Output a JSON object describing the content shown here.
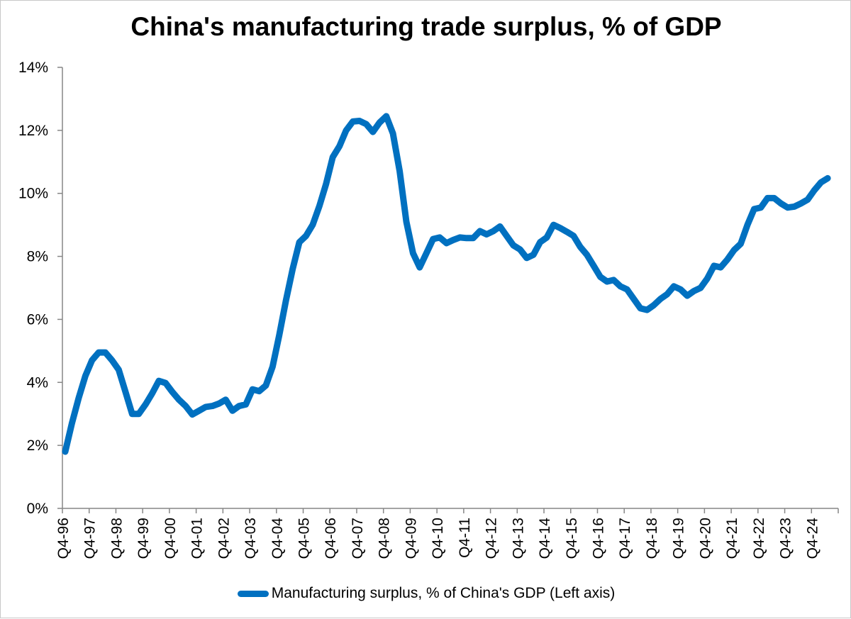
{
  "chart_data": {
    "type": "line",
    "title": "China's manufacturing trade surplus, % of GDP",
    "xlabel": "",
    "ylabel": "",
    "ylim": [
      0,
      14
    ],
    "y_ticks": [
      "0%",
      "2%",
      "4%",
      "6%",
      "8%",
      "10%",
      "12%",
      "14%"
    ],
    "y_tick_values": [
      0,
      2,
      4,
      6,
      8,
      10,
      12,
      14
    ],
    "x_tick_labels": [
      "Q4-96",
      "Q4-97",
      "Q4-98",
      "Q4-99",
      "Q4-00",
      "Q4-01",
      "Q4-02",
      "Q4-03",
      "Q4-04",
      "Q4-05",
      "Q4-06",
      "Q4-07",
      "Q4-08",
      "Q4-09",
      "Q4-10",
      "Q4-11",
      "Q4-12",
      "Q4-13",
      "Q4-14",
      "Q4-15",
      "Q4-16",
      "Q4-17",
      "Q4-18",
      "Q4-19",
      "Q4-20",
      "Q4-21",
      "Q4-22",
      "Q4-23",
      "Q4-24"
    ],
    "grid": false,
    "legend_position": "bottom",
    "color": "#0070C0",
    "series": [
      {
        "name": "Manufacturing surplus, % of China's GDP (Left axis)",
        "values": [
          1.8,
          2.7,
          3.5,
          4.2,
          4.7,
          4.95,
          4.95,
          4.7,
          4.4,
          3.7,
          3.0,
          3.0,
          3.3,
          3.65,
          4.05,
          3.98,
          3.7,
          3.45,
          3.25,
          2.98,
          3.1,
          3.22,
          3.25,
          3.33,
          3.45,
          3.1,
          3.25,
          3.3,
          3.78,
          3.72,
          3.9,
          4.5,
          5.5,
          6.6,
          7.6,
          8.45,
          8.65,
          9.0,
          9.6,
          10.3,
          11.15,
          11.5,
          12.0,
          12.28,
          12.3,
          12.2,
          11.95,
          12.25,
          12.45,
          11.9,
          10.7,
          9.1,
          8.1,
          7.65,
          8.1,
          8.55,
          8.6,
          8.42,
          8.52,
          8.6,
          8.58,
          8.58,
          8.8,
          8.7,
          8.8,
          8.95,
          8.65,
          8.35,
          8.22,
          7.95,
          8.05,
          8.45,
          8.6,
          9.0,
          8.9,
          8.78,
          8.65,
          8.3,
          8.05,
          7.7,
          7.35,
          7.2,
          7.25,
          7.05,
          6.95,
          6.65,
          6.35,
          6.3,
          6.45,
          6.65,
          6.8,
          7.05,
          6.95,
          6.75,
          6.9,
          7.0,
          7.3,
          7.7,
          7.65,
          7.9,
          8.2,
          8.4,
          9.0,
          9.5,
          9.55,
          9.85,
          9.85,
          9.68,
          9.55,
          9.58,
          9.68,
          9.8,
          10.1,
          10.35,
          10.48
        ]
      }
    ]
  }
}
